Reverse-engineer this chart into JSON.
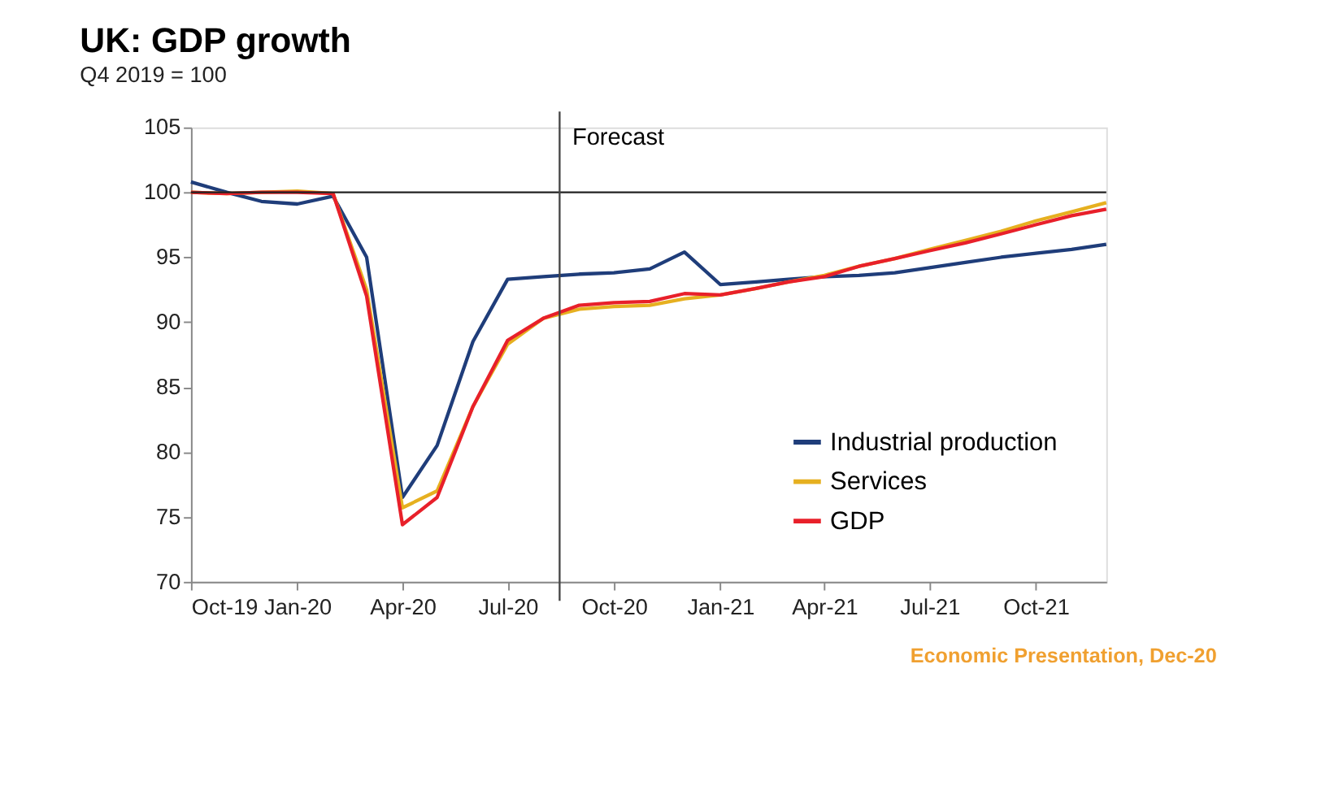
{
  "chart_data": {
    "type": "line",
    "title": "UK: GDP growth",
    "subtitle": "Q4 2019 = 100",
    "x": [
      "2019-10",
      "2019-11",
      "2019-12",
      "2020-01",
      "2020-02",
      "2020-03",
      "2020-04",
      "2020-05",
      "2020-06",
      "2020-07",
      "2020-08",
      "2020-09",
      "2020-10",
      "2020-11",
      "2020-12",
      "2021-01",
      "2021-02",
      "2021-03",
      "2021-04",
      "2021-05",
      "2021-06",
      "2021-07",
      "2021-08",
      "2021-09",
      "2021-10",
      "2021-11",
      "2021-12"
    ],
    "series": [
      {
        "name": "Industrial production",
        "color": "#1f3d7a",
        "values": [
          100.8,
          100,
          99.3,
          99.1,
          99.7,
          95,
          76.5,
          80.5,
          88.5,
          93.3,
          93.5,
          93.7,
          93.8,
          94.1,
          95.4,
          92.9,
          93.1,
          93.3,
          93.5,
          93.6,
          93.8,
          94.2,
          94.6,
          95.0,
          95.3,
          95.6,
          96.0
        ]
      },
      {
        "name": "Services",
        "color": "#e6b020",
        "values": [
          100,
          99.9,
          100,
          100.1,
          99.9,
          92.5,
          75.7,
          77,
          83.5,
          88.3,
          90.3,
          91,
          91.2,
          91.3,
          91.8,
          92.1,
          92.6,
          93.1,
          93.6,
          94.3,
          94.9,
          95.6,
          96.3,
          97,
          97.8,
          98.5,
          99.2
        ]
      },
      {
        "name": "GDP",
        "color": "#e8202a",
        "values": [
          100,
          99.9,
          100,
          100,
          99.9,
          92,
          74.4,
          76.5,
          83.5,
          88.6,
          90.3,
          91.3,
          91.5,
          91.6,
          92.2,
          92.1,
          92.6,
          93.1,
          93.5,
          94.3,
          94.9,
          95.5,
          96.1,
          96.8,
          97.5,
          98.2,
          98.7
        ]
      }
    ],
    "xlim": [
      "2019-10",
      "2021-12"
    ],
    "xticks": [
      {
        "value": "2019-10",
        "label": "Oct-19"
      },
      {
        "value": "2020-01",
        "label": "Jan-20"
      },
      {
        "value": "2020-04",
        "label": "Apr-20"
      },
      {
        "value": "2020-07",
        "label": "Jul-20"
      },
      {
        "value": "2020-10",
        "label": "Oct-20"
      },
      {
        "value": "2021-01",
        "label": "Jan-21"
      },
      {
        "value": "2021-04",
        "label": "Apr-21"
      },
      {
        "value": "2021-07",
        "label": "Jul-21"
      },
      {
        "value": "2021-10",
        "label": "Oct-21"
      }
    ],
    "ylim": [
      70,
      105
    ],
    "yticks": [
      70,
      75,
      80,
      85,
      90,
      95,
      100,
      105
    ],
    "ref_lines": [
      {
        "axis": "y",
        "value": 100,
        "color": "#222222"
      },
      {
        "axis": "x",
        "value": "2020-08-15",
        "label": "Forecast",
        "color": "#444444"
      }
    ],
    "annotations": [
      "Economic Presentation, Dec-20"
    ],
    "legend": "bottom right",
    "grid": false,
    "marker": "none",
    "line_style": "solid"
  }
}
